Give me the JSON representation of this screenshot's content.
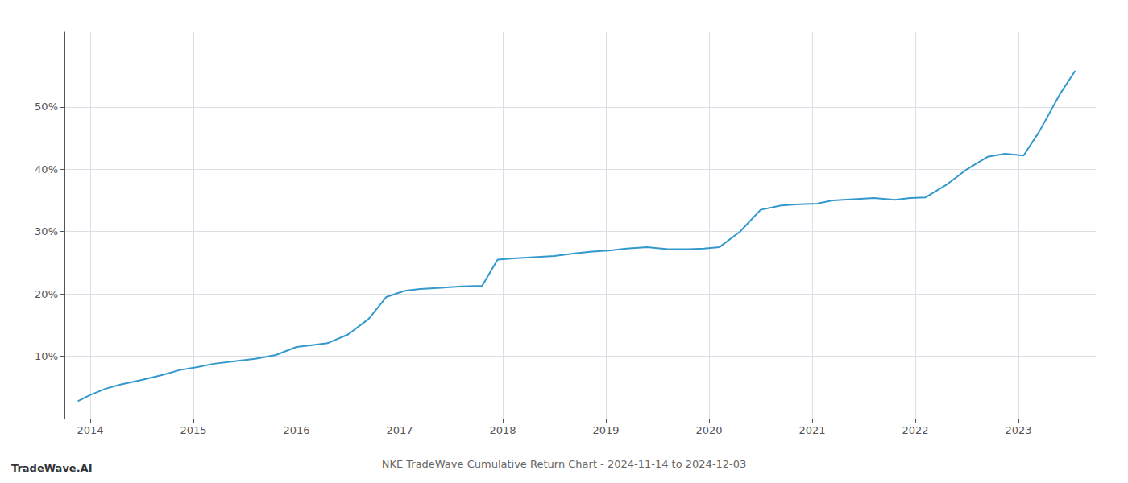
{
  "chart_data": {
    "type": "line",
    "title": "NKE TradeWave Cumulative Return Chart - 2024-11-14 to 2024-12-03",
    "annotations": [
      "TradeWave.AI"
    ],
    "x": [
      2013.88,
      2014.0,
      2014.15,
      2014.3,
      2014.5,
      2014.7,
      2014.87,
      2015.05,
      2015.2,
      2015.4,
      2015.6,
      2015.8,
      2016.0,
      2016.15,
      2016.3,
      2016.5,
      2016.7,
      2016.87,
      2017.05,
      2017.2,
      2017.4,
      2017.6,
      2017.8,
      2017.95,
      2018.1,
      2018.3,
      2018.5,
      2018.7,
      2018.87,
      2019.05,
      2019.2,
      2019.4,
      2019.6,
      2019.8,
      2019.95,
      2020.1,
      2020.3,
      2020.5,
      2020.7,
      2020.87,
      2021.05,
      2021.2,
      2021.4,
      2021.6,
      2021.8,
      2021.95,
      2022.1,
      2022.3,
      2022.5,
      2022.7,
      2022.87,
      2023.05,
      2023.2,
      2023.4,
      2023.55
    ],
    "values": [
      2.8,
      3.8,
      4.8,
      5.5,
      6.2,
      7.0,
      7.8,
      8.3,
      8.8,
      9.2,
      9.6,
      10.2,
      11.5,
      11.8,
      12.1,
      13.5,
      16.0,
      19.5,
      20.5,
      20.8,
      21.0,
      21.2,
      21.3,
      25.5,
      25.7,
      25.9,
      26.1,
      26.5,
      26.8,
      27.0,
      27.3,
      27.5,
      27.2,
      27.2,
      27.3,
      27.5,
      30.0,
      33.5,
      34.2,
      34.4,
      34.5,
      35.0,
      35.2,
      35.4,
      35.1,
      35.4,
      35.5,
      37.5,
      40.0,
      42.0,
      42.5,
      42.2,
      46.0,
      52.0,
      55.8
    ],
    "color": "#3399cc",
    "xlim": [
      2013.75,
      2023.75
    ],
    "xticks": [
      2014,
      2015,
      2016,
      2017,
      2018,
      2019,
      2020,
      2021,
      2022,
      2023
    ],
    "ylim": [
      0,
      62
    ],
    "yticks": [
      {
        "value": 10,
        "label": "10%"
      },
      {
        "value": 20,
        "label": "20%"
      },
      {
        "value": 30,
        "label": "30%"
      },
      {
        "value": 40,
        "label": "40%"
      },
      {
        "value": 50,
        "label": "50%"
      }
    ],
    "grid": true
  }
}
